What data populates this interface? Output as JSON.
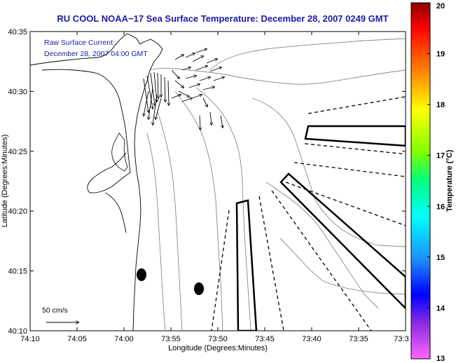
{
  "chart_data": {
    "type": "map",
    "title": "RU COOL  NOAA−17  Sea Surface Temperature:  December 28, 2007 0249 GMT",
    "annotation_lines": [
      "Raw Surface Current:",
      "December 28, 2007 04:00 GMT"
    ],
    "xlabel": "Longitude (Degrees:Minutes)",
    "ylabel": "Latitude (Degrees:Minutes)",
    "x_ticks": [
      "74:10",
      "74:05",
      "74:00",
      "73:55",
      "73:50",
      "73:45",
      "73:40",
      "73:35",
      "73:3"
    ],
    "y_ticks": [
      "40:35",
      "40:30",
      "40:25",
      "40:20",
      "40:15",
      "40:10"
    ],
    "scale_label": "50 cm/s",
    "colorbar": {
      "label": "Temperature (°C)",
      "ticks": [
        "20",
        "19",
        "18",
        "17",
        "16",
        "15",
        "14",
        "13"
      ],
      "range": [
        13,
        20
      ],
      "colors": [
        "#8b0000",
        "#ff0000",
        "#ff8c00",
        "#ffff00",
        "#7fff00",
        "#00ff7f",
        "#00ffff",
        "#1e90ff",
        "#0000ff",
        "#8a2be2",
        "#ff00ff"
      ]
    },
    "grid": false
  }
}
